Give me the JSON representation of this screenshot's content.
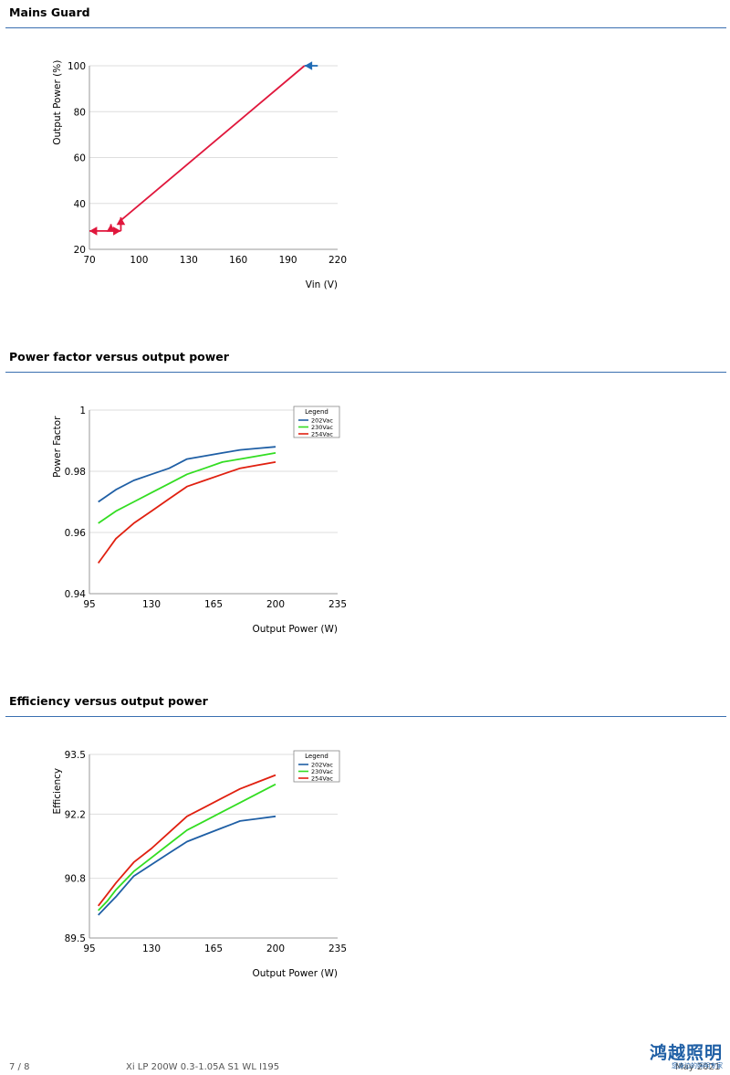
{
  "sections": [
    {
      "title": "Mains Guard"
    },
    {
      "title": "Power factor versus output power"
    },
    {
      "title": "Efficiency versus output power"
    }
  ],
  "chart_data": [
    {
      "type": "line",
      "ylabel": "Output Power (%)",
      "xlabel": "Vin (V)",
      "xlim": [
        70,
        220
      ],
      "ylim": [
        20,
        100
      ],
      "xticks": [
        70,
        100,
        130,
        160,
        190,
        220
      ],
      "yticks": [
        20,
        40,
        60,
        80,
        100
      ],
      "grid": true,
      "series": [
        {
          "color": "#e0173c",
          "x": [
            88,
            200
          ],
          "y": [
            32,
            100
          ]
        }
      ],
      "annotations": [
        {
          "arrow": "left",
          "color": "#1f6bb5",
          "x_from": 208,
          "x_to": 200,
          "y": 100
        },
        {
          "arrow": "left",
          "color": "#e0173c",
          "x_from": 82,
          "x_to": 70,
          "y": 28
        },
        {
          "arrow": "right",
          "color": "#e0173c",
          "x_from": 82,
          "x_to": 89,
          "y": 28
        },
        {
          "arrow": "up",
          "color": "#e0173c",
          "x": 89,
          "y_from": 28,
          "y_to": 34
        },
        {
          "arrow": "up",
          "color": "#e0173c",
          "x": 83,
          "y_from": 28,
          "y_to": 31
        }
      ]
    },
    {
      "type": "line",
      "ylabel": "Power Factor",
      "xlabel": "Output Power (W)",
      "xlim": [
        95,
        235
      ],
      "ylim": [
        0.94,
        1
      ],
      "xticks": [
        95,
        130,
        165,
        200,
        235
      ],
      "yticks": [
        0.94,
        0.96,
        0.98,
        1
      ],
      "ytick_labels": [
        "0.94",
        "0.96",
        "0.98",
        "1"
      ],
      "grid": true,
      "legend_title": "Legend",
      "legend_position": "top-right",
      "series": [
        {
          "name": "202Vac",
          "color": "#1f5fa5",
          "x": [
            100,
            110,
            120,
            130,
            140,
            150,
            160,
            170,
            180,
            190,
            200
          ],
          "y": [
            0.97,
            0.974,
            0.977,
            0.979,
            0.981,
            0.984,
            0.985,
            0.986,
            0.987,
            0.9875,
            0.988
          ]
        },
        {
          "name": "230Vac",
          "color": "#33dd22",
          "x": [
            100,
            110,
            120,
            130,
            140,
            150,
            160,
            170,
            180,
            190,
            200
          ],
          "y": [
            0.963,
            0.967,
            0.97,
            0.973,
            0.976,
            0.979,
            0.981,
            0.983,
            0.984,
            0.985,
            0.986
          ]
        },
        {
          "name": "254Vac",
          "color": "#e02010",
          "x": [
            100,
            105,
            110,
            120,
            130,
            140,
            150,
            160,
            170,
            180,
            190,
            200
          ],
          "y": [
            0.95,
            0.954,
            0.958,
            0.963,
            0.967,
            0.971,
            0.975,
            0.977,
            0.979,
            0.981,
            0.982,
            0.983
          ]
        }
      ]
    },
    {
      "type": "line",
      "ylabel": "Efficiency",
      "xlabel": "Output Power (W)",
      "xlim": [
        95,
        235
      ],
      "ylim": [
        89.5,
        93.5
      ],
      "xticks": [
        95,
        130,
        165,
        200,
        235
      ],
      "yticks": [
        89.5,
        90.8,
        92.2,
        93.5
      ],
      "ytick_labels": [
        "89.5",
        "90.8",
        "92.2",
        "93.5"
      ],
      "grid": true,
      "legend_title": "Legend",
      "legend_position": "top-right",
      "series": [
        {
          "name": "202Vac",
          "color": "#1f5fa5",
          "x": [
            100,
            105,
            110,
            120,
            130,
            140,
            150,
            160,
            170,
            180,
            190,
            200
          ],
          "y": [
            90.0,
            90.2,
            90.4,
            90.85,
            91.1,
            91.35,
            91.6,
            91.75,
            91.9,
            92.05,
            92.1,
            92.15
          ]
        },
        {
          "name": "230Vac",
          "color": "#33dd22",
          "x": [
            100,
            105,
            110,
            120,
            130,
            140,
            150,
            160,
            170,
            180,
            190,
            200
          ],
          "y": [
            90.1,
            90.3,
            90.55,
            90.95,
            91.25,
            91.55,
            91.85,
            92.05,
            92.25,
            92.45,
            92.65,
            92.85
          ]
        },
        {
          "name": "254Vac",
          "color": "#e02010",
          "x": [
            100,
            105,
            110,
            120,
            130,
            140,
            150,
            160,
            170,
            180,
            190,
            200
          ],
          "y": [
            90.2,
            90.45,
            90.7,
            91.15,
            91.45,
            91.8,
            92.15,
            92.35,
            92.55,
            92.75,
            92.9,
            93.05
          ]
        }
      ]
    }
  ],
  "footer": {
    "page": "7 / 8",
    "product": "Xi LP 200W 0.3-1.05A S1 WL I195",
    "date": "May 2021",
    "logo_main": "鸿越照明",
    "logo_sub": "您身边的照明专家"
  }
}
